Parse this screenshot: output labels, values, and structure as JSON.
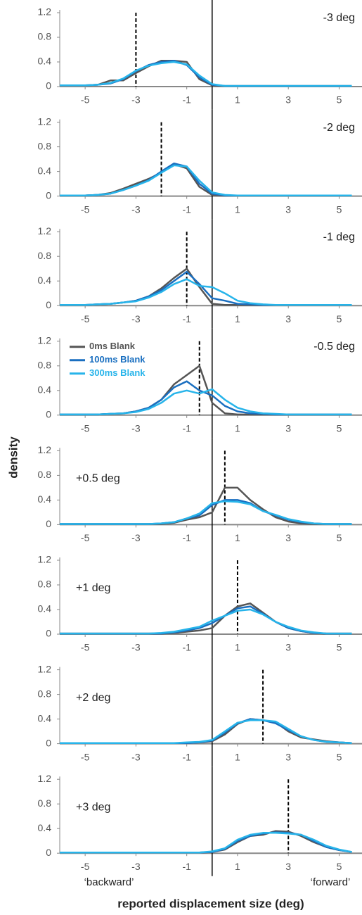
{
  "ylabel": "density",
  "xlabel": "reported displacement size (deg)",
  "annotations": [
    "‘backward’",
    "‘forward’"
  ],
  "chart_data": [
    {
      "type": "line",
      "label": "-3 deg",
      "label_corner": "upper right",
      "displacement": -3,
      "reference_line": 0,
      "xlim": [
        -6,
        5.9
      ],
      "ylim": [
        0,
        1.2
      ],
      "xticks": [
        -5,
        -3,
        -1,
        1,
        3,
        5
      ],
      "yticks": [
        0,
        0.4,
        0.8,
        1.2
      ],
      "x": [
        -6,
        -5.5,
        -5,
        -4.5,
        -4,
        -3.5,
        -3,
        -2.5,
        -2,
        -1.5,
        -1,
        -0.5,
        0,
        0.5,
        1,
        1.5,
        2,
        2.5,
        3,
        3.5,
        4,
        4.5,
        5,
        5.5
      ],
      "series": [
        {
          "color": "#555555",
          "values": [
            0.02,
            0.02,
            0.02,
            0.03,
            0.1,
            0.1,
            0.22,
            0.33,
            0.42,
            0.42,
            0.4,
            0.12,
            0.02,
            0.01,
            0.01,
            0.01,
            0.01,
            0.01,
            0.01,
            0.01,
            0.01,
            0.01,
            0.01,
            0.01
          ]
        },
        {
          "color": "#1a6fc0",
          "values": [
            0.02,
            0.02,
            0.02,
            0.03,
            0.05,
            0.12,
            0.25,
            0.35,
            0.4,
            0.42,
            0.35,
            0.15,
            0.03,
            0.01,
            0.01,
            0.01,
            0.01,
            0.01,
            0.01,
            0.01,
            0.01,
            0.01,
            0.01,
            0.01
          ]
        },
        {
          "color": "#27b4ea",
          "values": [
            0.02,
            0.02,
            0.02,
            0.03,
            0.06,
            0.13,
            0.26,
            0.34,
            0.38,
            0.4,
            0.36,
            0.18,
            0.04,
            0.01,
            0.01,
            0.01,
            0.01,
            0.01,
            0.01,
            0.01,
            0.01,
            0.01,
            0.01,
            0.01
          ]
        }
      ]
    },
    {
      "type": "line",
      "label": "-2 deg",
      "label_corner": "upper right",
      "displacement": -2,
      "reference_line": 0,
      "xlim": [
        -6,
        5.9
      ],
      "ylim": [
        0,
        1.2
      ],
      "xticks": [
        -5,
        -3,
        -1,
        1,
        3,
        5
      ],
      "yticks": [
        0,
        0.4,
        0.8,
        1.2
      ],
      "x": [
        -6,
        -5.5,
        -5,
        -4.5,
        -4,
        -3.5,
        -3,
        -2.5,
        -2,
        -1.5,
        -1,
        -0.5,
        0,
        0.5,
        1,
        1.5,
        2,
        2.5,
        3,
        3.5,
        4,
        4.5,
        5,
        5.5
      ],
      "series": [
        {
          "color": "#555555",
          "values": [
            0.01,
            0.01,
            0.01,
            0.02,
            0.05,
            0.12,
            0.2,
            0.28,
            0.38,
            0.52,
            0.45,
            0.15,
            0.02,
            0.01,
            0.01,
            0.01,
            0.01,
            0.01,
            0.01,
            0.01,
            0.01,
            0.01,
            0.01,
            0.01
          ]
        },
        {
          "color": "#1a6fc0",
          "values": [
            0.01,
            0.01,
            0.01,
            0.02,
            0.04,
            0.1,
            0.17,
            0.26,
            0.4,
            0.53,
            0.48,
            0.2,
            0.04,
            0.01,
            0.01,
            0.01,
            0.01,
            0.01,
            0.01,
            0.01,
            0.01,
            0.01,
            0.01,
            0.01
          ]
        },
        {
          "color": "#27b4ea",
          "values": [
            0.01,
            0.01,
            0.01,
            0.02,
            0.04,
            0.1,
            0.17,
            0.25,
            0.38,
            0.5,
            0.48,
            0.25,
            0.06,
            0.02,
            0.01,
            0.01,
            0.01,
            0.01,
            0.01,
            0.01,
            0.01,
            0.01,
            0.01,
            0.01
          ]
        }
      ]
    },
    {
      "type": "line",
      "label": "-1 deg",
      "label_corner": "upper right",
      "displacement": -1,
      "reference_line": 0,
      "xlim": [
        -6,
        5.9
      ],
      "ylim": [
        0,
        1.2
      ],
      "xticks": [
        -5,
        -3,
        -1,
        1,
        3,
        5
      ],
      "yticks": [
        0,
        0.4,
        0.8,
        1.2
      ],
      "x": [
        -6,
        -5.5,
        -5,
        -4.5,
        -4,
        -3.5,
        -3,
        -2.5,
        -2,
        -1.5,
        -1,
        -0.5,
        0,
        0.5,
        1,
        1.5,
        2,
        2.5,
        3,
        3.5,
        4,
        4.5,
        5,
        5.5
      ],
      "series": [
        {
          "color": "#555555",
          "values": [
            0.01,
            0.01,
            0.01,
            0.02,
            0.03,
            0.05,
            0.08,
            0.15,
            0.28,
            0.45,
            0.6,
            0.3,
            0.03,
            0.01,
            0.01,
            0.01,
            0.01,
            0.01,
            0.01,
            0.01,
            0.01,
            0.01,
            0.01,
            0.01
          ]
        },
        {
          "color": "#1a6fc0",
          "values": [
            0.01,
            0.01,
            0.01,
            0.02,
            0.03,
            0.05,
            0.08,
            0.15,
            0.25,
            0.4,
            0.55,
            0.35,
            0.12,
            0.08,
            0.03,
            0.02,
            0.01,
            0.01,
            0.01,
            0.01,
            0.01,
            0.01,
            0.01,
            0.01
          ]
        },
        {
          "color": "#27b4ea",
          "values": [
            0.01,
            0.01,
            0.01,
            0.02,
            0.03,
            0.05,
            0.07,
            0.13,
            0.22,
            0.35,
            0.43,
            0.32,
            0.3,
            0.2,
            0.08,
            0.04,
            0.02,
            0.01,
            0.01,
            0.01,
            0.01,
            0.01,
            0.01,
            0.01
          ]
        }
      ]
    },
    {
      "type": "line",
      "label": "-0.5 deg",
      "label_corner": "upper right",
      "displacement": -0.5,
      "reference_line": 0,
      "legend": "upper left",
      "xlim": [
        -6,
        5.9
      ],
      "ylim": [
        0,
        1.2
      ],
      "xticks": [
        -5,
        -3,
        -1,
        1,
        3,
        5
      ],
      "yticks": [
        0,
        0.4,
        0.8,
        1.2
      ],
      "x": [
        -6,
        -5.5,
        -5,
        -4.5,
        -4,
        -3.5,
        -3,
        -2.5,
        -2,
        -1.5,
        -1,
        -0.5,
        0,
        0.5,
        1,
        1.5,
        2,
        2.5,
        3,
        3.5,
        4,
        4.5,
        5,
        5.5
      ],
      "series": [
        {
          "name": "0ms Blank",
          "color": "#555555",
          "values": [
            0.01,
            0.01,
            0.01,
            0.01,
            0.02,
            0.03,
            0.06,
            0.12,
            0.25,
            0.5,
            0.65,
            0.8,
            0.2,
            0.03,
            0.01,
            0.01,
            0.01,
            0.01,
            0.01,
            0.01,
            0.01,
            0.01,
            0.01,
            0.01
          ]
        },
        {
          "name": "100ms Blank",
          "color": "#1a6fc0",
          "values": [
            0.01,
            0.01,
            0.01,
            0.01,
            0.02,
            0.03,
            0.06,
            0.12,
            0.25,
            0.45,
            0.55,
            0.4,
            0.32,
            0.15,
            0.06,
            0.03,
            0.02,
            0.01,
            0.01,
            0.01,
            0.01,
            0.01,
            0.01,
            0.01
          ]
        },
        {
          "name": "300ms Blank",
          "color": "#27b4ea",
          "values": [
            0.01,
            0.01,
            0.01,
            0.01,
            0.02,
            0.03,
            0.05,
            0.1,
            0.2,
            0.35,
            0.4,
            0.35,
            0.42,
            0.25,
            0.12,
            0.06,
            0.03,
            0.02,
            0.01,
            0.01,
            0.01,
            0.01,
            0.01,
            0.01
          ]
        }
      ]
    },
    {
      "type": "line",
      "label": "+0.5 deg",
      "label_corner": "upper left",
      "displacement": 0.5,
      "reference_line": 0,
      "xlim": [
        -6,
        5.9
      ],
      "ylim": [
        0,
        1.2
      ],
      "xticks": [
        -5,
        -3,
        -1,
        1,
        3,
        5
      ],
      "yticks": [
        0,
        0.4,
        0.8,
        1.2
      ],
      "x": [
        -6,
        -5.5,
        -5,
        -4.5,
        -4,
        -3.5,
        -3,
        -2.5,
        -2,
        -1.5,
        -1,
        -0.5,
        0,
        0.5,
        1,
        1.5,
        2,
        2.5,
        3,
        3.5,
        4,
        4.5,
        5,
        5.5
      ],
      "series": [
        {
          "color": "#555555",
          "values": [
            0.01,
            0.01,
            0.01,
            0.01,
            0.01,
            0.01,
            0.01,
            0.01,
            0.01,
            0.03,
            0.08,
            0.12,
            0.2,
            0.6,
            0.6,
            0.4,
            0.25,
            0.12,
            0.05,
            0.02,
            0.01,
            0.01,
            0.01,
            0.01
          ]
        },
        {
          "color": "#1a6fc0",
          "values": [
            0.01,
            0.01,
            0.01,
            0.01,
            0.01,
            0.01,
            0.01,
            0.01,
            0.02,
            0.04,
            0.1,
            0.15,
            0.32,
            0.4,
            0.4,
            0.35,
            0.22,
            0.15,
            0.08,
            0.04,
            0.02,
            0.01,
            0.01,
            0.01
          ]
        },
        {
          "color": "#27b4ea",
          "values": [
            0.01,
            0.01,
            0.01,
            0.01,
            0.01,
            0.01,
            0.01,
            0.01,
            0.02,
            0.04,
            0.1,
            0.18,
            0.35,
            0.38,
            0.37,
            0.33,
            0.22,
            0.16,
            0.09,
            0.05,
            0.02,
            0.01,
            0.01,
            0.01
          ]
        }
      ]
    },
    {
      "type": "line",
      "label": "+1 deg",
      "label_corner": "upper left",
      "displacement": 1,
      "reference_line": 0,
      "xlim": [
        -6,
        5.9
      ],
      "ylim": [
        0,
        1.2
      ],
      "xticks": [
        -5,
        -3,
        -1,
        1,
        3,
        5
      ],
      "yticks": [
        0,
        0.4,
        0.8,
        1.2
      ],
      "x": [
        -6,
        -5.5,
        -5,
        -4.5,
        -4,
        -3.5,
        -3,
        -2.5,
        -2,
        -1.5,
        -1,
        -0.5,
        0,
        0.5,
        1,
        1.5,
        2,
        2.5,
        3,
        3.5,
        4,
        4.5,
        5,
        5.5
      ],
      "series": [
        {
          "color": "#555555",
          "values": [
            0.01,
            0.01,
            0.01,
            0.01,
            0.01,
            0.01,
            0.01,
            0.01,
            0.01,
            0.02,
            0.04,
            0.06,
            0.1,
            0.3,
            0.45,
            0.5,
            0.35,
            0.2,
            0.1,
            0.05,
            0.02,
            0.01,
            0.01,
            0.01
          ]
        },
        {
          "color": "#1a6fc0",
          "values": [
            0.01,
            0.01,
            0.01,
            0.01,
            0.01,
            0.01,
            0.01,
            0.01,
            0.01,
            0.03,
            0.06,
            0.1,
            0.18,
            0.3,
            0.42,
            0.45,
            0.33,
            0.2,
            0.1,
            0.05,
            0.02,
            0.01,
            0.01,
            0.01
          ]
        },
        {
          "color": "#27b4ea",
          "values": [
            0.01,
            0.01,
            0.01,
            0.01,
            0.01,
            0.01,
            0.01,
            0.01,
            0.02,
            0.04,
            0.08,
            0.12,
            0.22,
            0.3,
            0.38,
            0.4,
            0.32,
            0.2,
            0.12,
            0.06,
            0.03,
            0.01,
            0.01,
            0.01
          ]
        }
      ]
    },
    {
      "type": "line",
      "label": "+2 deg",
      "label_corner": "upper left",
      "displacement": 2,
      "reference_line": 0,
      "xlim": [
        -6,
        5.9
      ],
      "ylim": [
        0,
        1.2
      ],
      "xticks": [
        -5,
        -3,
        -1,
        1,
        3,
        5
      ],
      "yticks": [
        0,
        0.4,
        0.8,
        1.2
      ],
      "x": [
        -6,
        -5.5,
        -5,
        -4.5,
        -4,
        -3.5,
        -3,
        -2.5,
        -2,
        -1.5,
        -1,
        -0.5,
        0,
        0.5,
        1,
        1.5,
        2,
        2.5,
        3,
        3.5,
        4,
        4.5,
        5,
        5.5
      ],
      "series": [
        {
          "color": "#555555",
          "values": [
            0.01,
            0.01,
            0.01,
            0.01,
            0.01,
            0.01,
            0.01,
            0.01,
            0.01,
            0.01,
            0.01,
            0.02,
            0.04,
            0.15,
            0.32,
            0.4,
            0.38,
            0.35,
            0.2,
            0.1,
            0.07,
            0.04,
            0.02,
            0.01
          ]
        },
        {
          "color": "#1a6fc0",
          "values": [
            0.01,
            0.01,
            0.01,
            0.01,
            0.01,
            0.01,
            0.01,
            0.01,
            0.01,
            0.01,
            0.01,
            0.02,
            0.05,
            0.18,
            0.33,
            0.4,
            0.38,
            0.33,
            0.22,
            0.12,
            0.06,
            0.03,
            0.02,
            0.01
          ]
        },
        {
          "color": "#27b4ea",
          "values": [
            0.01,
            0.01,
            0.01,
            0.01,
            0.01,
            0.01,
            0.01,
            0.01,
            0.01,
            0.01,
            0.02,
            0.03,
            0.06,
            0.2,
            0.34,
            0.38,
            0.38,
            0.36,
            0.24,
            0.12,
            0.06,
            0.03,
            0.02,
            0.01
          ]
        }
      ]
    },
    {
      "type": "line",
      "label": "+3 deg",
      "label_corner": "upper left",
      "displacement": 3,
      "reference_line": 0,
      "xlim": [
        -6,
        5.9
      ],
      "ylim": [
        0,
        1.2
      ],
      "xticks": [
        -5,
        -3,
        -1,
        1,
        3,
        5
      ],
      "yticks": [
        0,
        0.4,
        0.8,
        1.2
      ],
      "x": [
        -6,
        -5.5,
        -5,
        -4.5,
        -4,
        -3.5,
        -3,
        -2.5,
        -2,
        -1.5,
        -1,
        -0.5,
        0,
        0.5,
        1,
        1.5,
        2,
        2.5,
        3,
        3.5,
        4,
        4.5,
        5,
        5.5
      ],
      "series": [
        {
          "color": "#555555",
          "values": [
            0.01,
            0.01,
            0.01,
            0.01,
            0.01,
            0.01,
            0.01,
            0.01,
            0.01,
            0.01,
            0.01,
            0.01,
            0.02,
            0.06,
            0.18,
            0.28,
            0.3,
            0.36,
            0.35,
            0.28,
            0.18,
            0.1,
            0.05,
            0.02
          ]
        },
        {
          "color": "#1a6fc0",
          "values": [
            0.01,
            0.01,
            0.01,
            0.01,
            0.01,
            0.01,
            0.01,
            0.01,
            0.01,
            0.01,
            0.01,
            0.01,
            0.02,
            0.07,
            0.2,
            0.28,
            0.32,
            0.34,
            0.33,
            0.3,
            0.2,
            0.1,
            0.05,
            0.02
          ]
        },
        {
          "color": "#27b4ea",
          "values": [
            0.01,
            0.01,
            0.01,
            0.01,
            0.01,
            0.01,
            0.01,
            0.01,
            0.01,
            0.01,
            0.01,
            0.01,
            0.03,
            0.08,
            0.22,
            0.3,
            0.33,
            0.33,
            0.32,
            0.3,
            0.22,
            0.12,
            0.06,
            0.02
          ]
        }
      ]
    }
  ]
}
